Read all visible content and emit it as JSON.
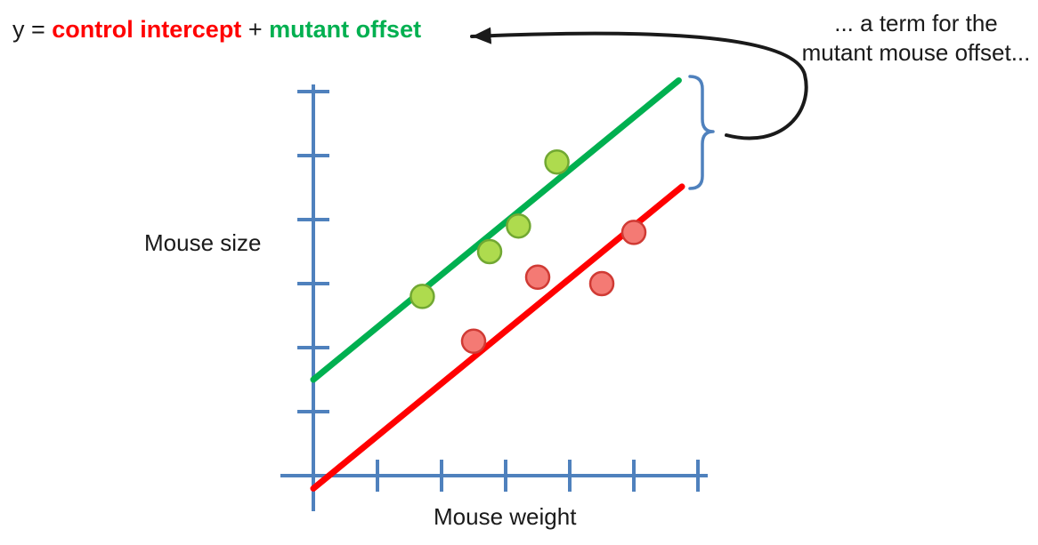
{
  "equation": {
    "lhs": "y = ",
    "control_term": "control intercept",
    "plus": " + ",
    "mutant_term": "mutant offset"
  },
  "annotation": {
    "line1": "... a term for the",
    "line2": "mutant mouse offset..."
  },
  "colors": {
    "control_red": "#FF0000",
    "mutant_green": "#00B050",
    "axis_blue": "#4F81BD",
    "arrow_black": "#1a1a1a",
    "brace_blue": "#4F81BD"
  },
  "chart_data": {
    "type": "scatter",
    "xlabel": "Mouse weight",
    "ylabel": "Mouse size",
    "xlim": [
      0,
      6.5
    ],
    "ylim": [
      0,
      6.5
    ],
    "x_ticks": [
      1,
      2,
      3,
      4,
      5,
      6
    ],
    "y_ticks": [
      1,
      2,
      3,
      4,
      5,
      6
    ],
    "grid": false,
    "legend": false,
    "axis_color": "#4F81BD",
    "series": [
      {
        "name": "mutant",
        "line_color": "#00B050",
        "point_fill": "#AEDB4E",
        "point_stroke": "#71A832",
        "line": {
          "intercept": 1.5,
          "slope": 0.82,
          "x_start": 0.0,
          "x_end": 5.7
        },
        "points": [
          [
            1.7,
            2.8
          ],
          [
            2.75,
            3.5
          ],
          [
            3.2,
            3.9
          ],
          [
            3.8,
            4.9
          ]
        ]
      },
      {
        "name": "control",
        "line_color": "#FF0000",
        "point_fill": "#F47A74",
        "point_stroke": "#D03A34",
        "line": {
          "intercept": -0.2,
          "slope": 0.82,
          "x_start": 0.0,
          "x_end": 5.75
        },
        "points": [
          [
            2.5,
            2.1
          ],
          [
            3.5,
            3.1
          ],
          [
            4.5,
            3.0
          ],
          [
            5.0,
            3.8
          ]
        ]
      }
    ]
  }
}
